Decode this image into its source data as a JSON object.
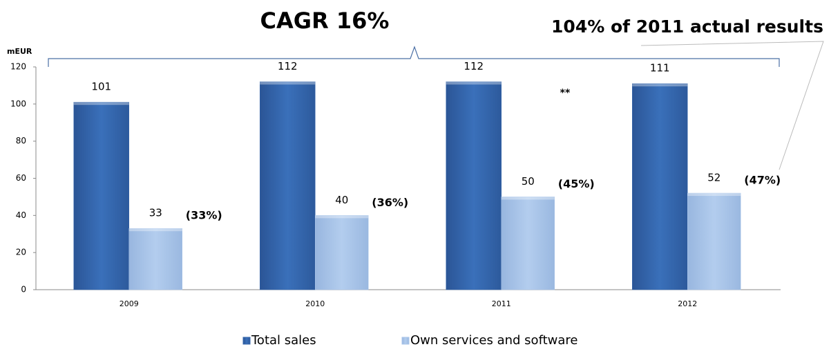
{
  "chart_data": {
    "type": "bar",
    "title": "CAGR 16%",
    "subtitle": "104% of 2011 actual results",
    "y_label": "mEUR",
    "note": "**",
    "categories": [
      "2009",
      "2010",
      "2011",
      "2012"
    ],
    "series": [
      {
        "name": "Total sales",
        "color": "#3567ad",
        "values": [
          101,
          112,
          112,
          111
        ]
      },
      {
        "name": "Own services and software",
        "color": "#a9c5ea",
        "values": [
          33,
          40,
          50,
          52
        ]
      }
    ],
    "share_labels": [
      "(33%)",
      "(36%)",
      "(45%)",
      "(47%)"
    ],
    "ylim": [
      0,
      120
    ],
    "yticks": [
      0,
      20,
      40,
      60,
      80,
      100,
      120
    ],
    "grid": false,
    "legend": "bottom"
  }
}
